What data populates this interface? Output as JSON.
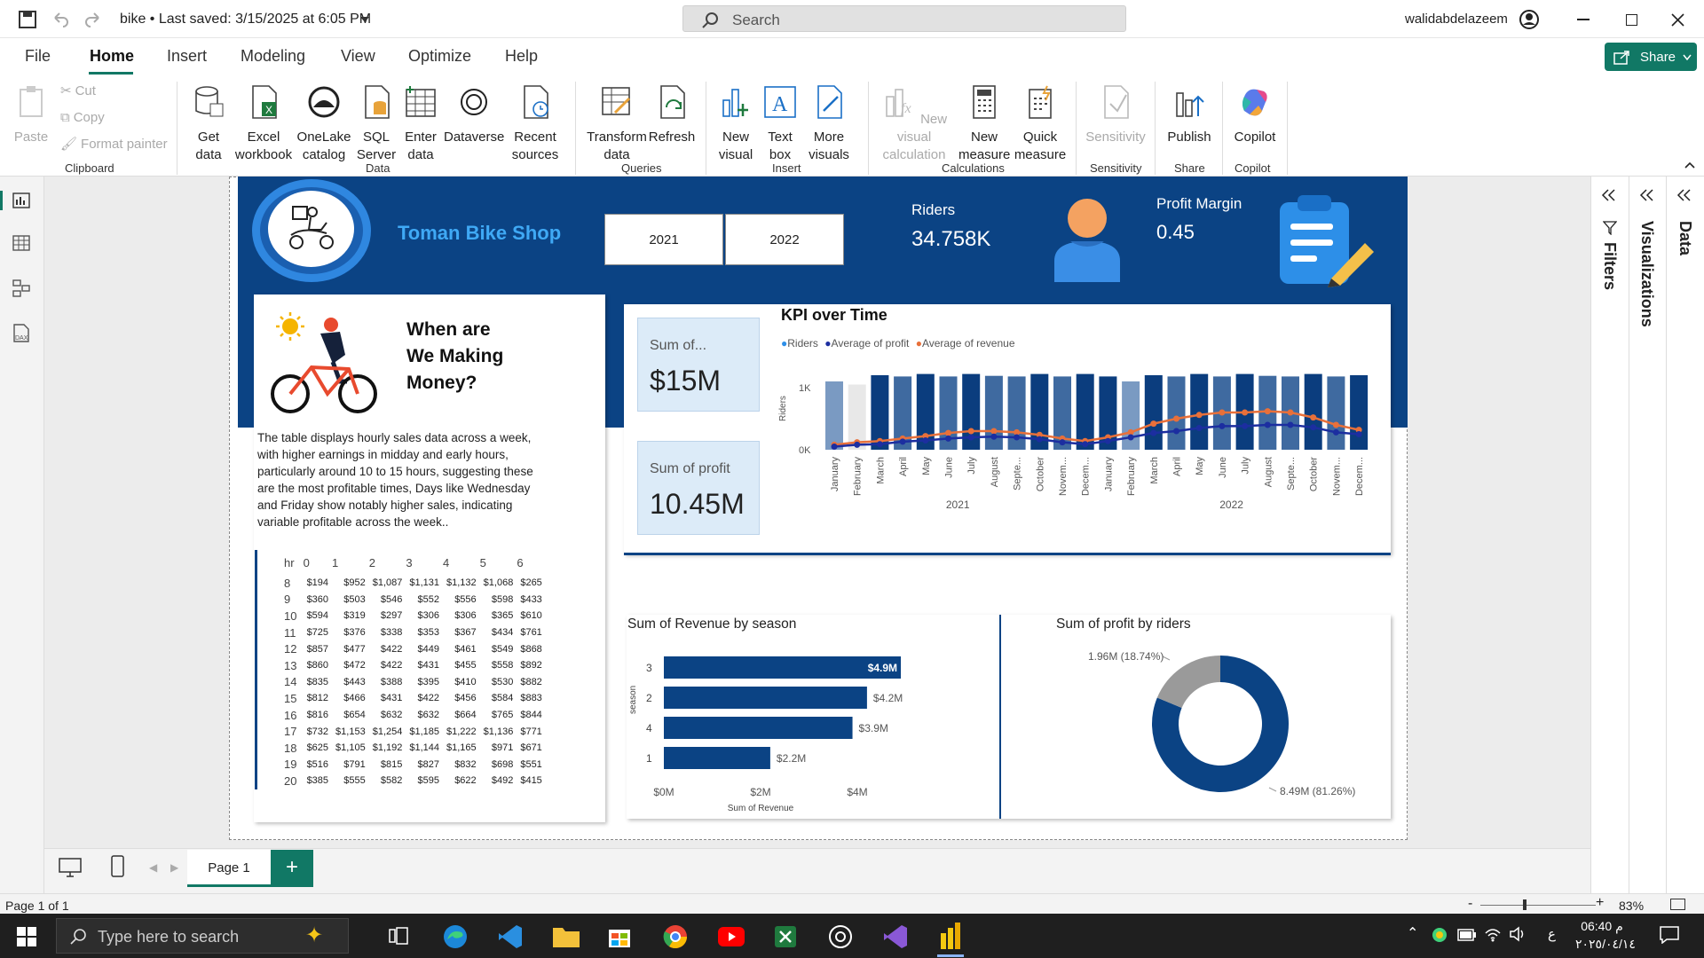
{
  "titlebar": {
    "title": "bike • Last saved: 3/15/2025 at 6:05 PM",
    "search_placeholder": "Search",
    "user": "walidabdelazeem"
  },
  "menu": {
    "items": [
      "File",
      "Home",
      "Insert",
      "Modeling",
      "View",
      "Optimize",
      "Help"
    ],
    "share": "Share"
  },
  "ribbon": {
    "clipboard": {
      "paste": "Paste",
      "cut": "Cut",
      "copy": "Copy",
      "format_painter": "Format painter",
      "group": "Clipboard"
    },
    "data": {
      "get_data": "Get data",
      "excel": "Excel workbook",
      "onelake": "OneLake catalog",
      "sql": "SQL Server",
      "enter": "Enter data",
      "dataverse": "Dataverse",
      "recent": "Recent sources",
      "group": "Data"
    },
    "queries": {
      "transform": "Transform data",
      "refresh": "Refresh",
      "group": "Queries"
    },
    "insert": {
      "new_visual": "New visual",
      "text_box": "Text box",
      "more_visuals": "More visuals",
      "group": "Insert"
    },
    "calculations": {
      "new_visual_calc": "New visual calculation",
      "new_measure": "New measure",
      "quick_measure": "Quick measure",
      "group": "Calculations"
    },
    "sensitivity": {
      "label": "Sensitivity",
      "group": "Sensitivity"
    },
    "share": {
      "publish": "Publish",
      "group": "Share"
    },
    "copilot": {
      "label": "Copilot",
      "group": "Copilot"
    }
  },
  "report": {
    "shop_name": "Toman Bike Shop",
    "years": [
      "2021",
      "2022"
    ],
    "riders_label": "Riders",
    "riders_value": "34.758K",
    "profit_margin_label": "Profit Margin",
    "profit_margin_value": "0.45",
    "headline_1": "When are",
    "headline_2": "We Making",
    "headline_3": "Money?",
    "description": "The table displays hourly sales data across a week, with higher earnings in midday and early hours, particularly around 10 to 15 hours, suggesting these are the most profitable times, Days like Wednesday and Friday show notably higher sales, indicating variable profitable across the week..",
    "sum_revenue_label": "Sum of...",
    "sum_revenue_value": "$15M",
    "sum_profit_label": "Sum of profit",
    "sum_profit_value": "10.45M",
    "kpi_title": "KPI over Time",
    "season_title": "Sum of Revenue by season",
    "donut_title": "Sum of profit by riders"
  },
  "hour_table": {
    "headers": [
      "hr",
      "0",
      "1",
      "2",
      "3",
      "4",
      "5",
      "6"
    ],
    "rows": [
      [
        "8",
        "$194",
        "$952",
        "$1,087",
        "$1,131",
        "$1,132",
        "$1,068",
        "$265"
      ],
      [
        "9",
        "$360",
        "$503",
        "$546",
        "$552",
        "$556",
        "$598",
        "$433"
      ],
      [
        "10",
        "$594",
        "$319",
        "$297",
        "$306",
        "$306",
        "$365",
        "$610"
      ],
      [
        "11",
        "$725",
        "$376",
        "$338",
        "$353",
        "$367",
        "$434",
        "$761"
      ],
      [
        "12",
        "$857",
        "$477",
        "$422",
        "$449",
        "$461",
        "$549",
        "$868"
      ],
      [
        "13",
        "$860",
        "$472",
        "$422",
        "$431",
        "$455",
        "$558",
        "$892"
      ],
      [
        "14",
        "$835",
        "$443",
        "$388",
        "$395",
        "$410",
        "$530",
        "$882"
      ],
      [
        "15",
        "$812",
        "$466",
        "$431",
        "$422",
        "$456",
        "$584",
        "$883"
      ],
      [
        "16",
        "$816",
        "$654",
        "$632",
        "$632",
        "$664",
        "$765",
        "$844"
      ],
      [
        "17",
        "$732",
        "$1,153",
        "$1,254",
        "$1,185",
        "$1,222",
        "$1,136",
        "$771"
      ],
      [
        "18",
        "$625",
        "$1,105",
        "$1,192",
        "$1,144",
        "$1,165",
        "$971",
        "$671"
      ],
      [
        "19",
        "$516",
        "$791",
        "$815",
        "$827",
        "$832",
        "$698",
        "$551"
      ],
      [
        "20",
        "$385",
        "$555",
        "$582",
        "$595",
        "$622",
        "$492",
        "$415"
      ]
    ]
  },
  "chart_data": [
    {
      "type": "bar",
      "title": "KPI over Time",
      "legend": [
        "Riders",
        "Average of profit",
        "Average of revenue"
      ],
      "ylabel": "Riders",
      "y_ticks": [
        "0K",
        "1K"
      ],
      "months": [
        "January",
        "February",
        "March",
        "April",
        "May",
        "June",
        "July",
        "August",
        "Septe...",
        "October",
        "Novem...",
        "Decem...",
        "January",
        "February",
        "March",
        "April",
        "May",
        "June",
        "July",
        "August",
        "Septe...",
        "October",
        "Novem...",
        "Decem..."
      ],
      "years": [
        "2021",
        "2022"
      ],
      "riders": [
        1.1,
        1.05,
        1.2,
        1.18,
        1.22,
        1.18,
        1.22,
        1.19,
        1.18,
        1.22,
        1.18,
        1.22,
        1.18,
        1.1,
        1.2,
        1.18,
        1.22,
        1.18,
        1.22,
        1.19,
        1.18,
        1.22,
        1.18,
        1.2
      ],
      "avg_profit": [
        0.05,
        0.08,
        0.09,
        0.13,
        0.15,
        0.18,
        0.2,
        0.21,
        0.2,
        0.17,
        0.12,
        0.09,
        0.14,
        0.2,
        0.27,
        0.3,
        0.35,
        0.38,
        0.38,
        0.4,
        0.4,
        0.36,
        0.28,
        0.25
      ],
      "avg_revenue": [
        0.08,
        0.12,
        0.14,
        0.18,
        0.22,
        0.27,
        0.3,
        0.3,
        0.28,
        0.24,
        0.18,
        0.14,
        0.2,
        0.28,
        0.42,
        0.5,
        0.56,
        0.6,
        0.6,
        0.62,
        0.6,
        0.52,
        0.4,
        0.32
      ],
      "colors": {
        "riders": "#0b3d7e",
        "avg_profit": "#1c2ea0",
        "avg_revenue": "#e8703a"
      }
    },
    {
      "type": "bar",
      "title": "Sum of Revenue by season",
      "orientation": "horizontal",
      "categories": [
        "3",
        "2",
        "4",
        "1"
      ],
      "values": [
        4.9,
        4.2,
        3.9,
        2.2
      ],
      "labels": [
        "$4.9M",
        "$4.2M",
        "$3.9M",
        "$2.2M"
      ],
      "xlabel": "Sum of Revenue",
      "ylabel": "season",
      "x_ticks": [
        "$0M",
        "$2M",
        "$4M"
      ]
    },
    {
      "type": "pie",
      "title": "Sum of profit by riders",
      "values": [
        8.49,
        1.96
      ],
      "labels": [
        "8.49M (81.26%)",
        "1.96M (18.74%)"
      ],
      "colors": [
        "#0b4384",
        "#9a9a9a"
      ]
    }
  ],
  "pages": {
    "tab": "Page 1"
  },
  "status": {
    "page": "Page 1 of 1",
    "zoom": "83%"
  },
  "panes": {
    "filters": "Filters",
    "visualizations": "Visualizations",
    "data": "Data"
  },
  "taskbar": {
    "search_placeholder": "Type here to search",
    "time": "06:40 م",
    "date": "٢٠٢٥/٠٤/١٤"
  }
}
